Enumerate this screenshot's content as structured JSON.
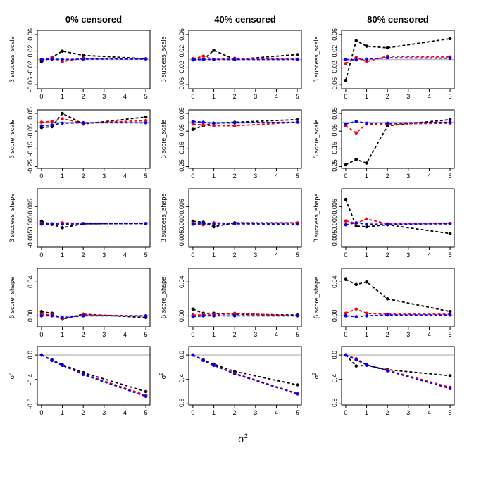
{
  "chart_data": {
    "type": "line",
    "column_titles": [
      "0% censored",
      "40% censored",
      "80% censored"
    ],
    "xlabel": "σ",
    "xlabel_sup": "2",
    "x_ticks": [
      "0",
      "1",
      "2",
      "3",
      "4",
      "5"
    ],
    "x": [
      0,
      0.5,
      1,
      2,
      5
    ],
    "series_colors": {
      "black": "#000000",
      "red": "#ff0000",
      "blue": "#0000ff"
    },
    "reference_color": "#bebebe",
    "rows": [
      {
        "ylabel": "β success_scale",
        "ylim": [
          -0.07,
          0.07
        ],
        "yticks": [
          -0.06,
          -0.02,
          0.02,
          0.06
        ],
        "ytick_labels": [
          "-0.06",
          "-0.02",
          "0.02",
          "0.06"
        ],
        "panels": [
          {
            "black": [
              -0.005,
              0.005,
              0.02,
              0.01,
              0.002
            ],
            "red": [
              0.0,
              0.004,
              -0.005,
              0.003,
              0.002
            ],
            "blue": [
              0.0,
              0.001,
              0.0,
              0.001,
              0.001
            ]
          },
          {
            "black": [
              0.001,
              0.0,
              0.022,
              0.0,
              0.012
            ],
            "red": [
              0.002,
              0.008,
              0.0,
              0.003,
              0.001
            ],
            "blue": [
              -0.001,
              0.0,
              0.0,
              0.0,
              0.0
            ]
          },
          {
            "black": [
              -0.05,
              0.045,
              0.032,
              0.028,
              0.05
            ],
            "red": [
              -0.01,
              0.005,
              -0.005,
              0.008,
              0.006
            ],
            "blue": [
              0.0,
              -0.001,
              0.001,
              0.004,
              0.003
            ]
          }
        ]
      },
      {
        "ylabel": "β score_scale",
        "ylim": [
          -0.26,
          0.07
        ],
        "yticks": [
          -0.25,
          -0.15,
          -0.05,
          0.05
        ],
        "ytick_labels": [
          "-0.25",
          "-0.15",
          "-0.05",
          "0.05"
        ],
        "panels": [
          {
            "black": [
              -0.03,
              -0.025,
              0.05,
              -0.01,
              0.03
            ],
            "red": [
              0.0,
              0.005,
              0.02,
              -0.005,
              0.01
            ],
            "blue": [
              -0.02,
              -0.015,
              -0.005,
              -0.003,
              -0.003
            ]
          },
          {
            "black": [
              -0.04,
              -0.02,
              -0.005,
              0.0,
              0.015
            ],
            "red": [
              -0.01,
              -0.015,
              -0.02,
              -0.02,
              0.0
            ],
            "blue": [
              0.005,
              0.0,
              -0.005,
              -0.003,
              0.0
            ]
          },
          {
            "black": [
              -0.24,
              -0.21,
              -0.23,
              -0.02,
              0.015
            ],
            "red": [
              -0.02,
              -0.06,
              -0.01,
              -0.01,
              -0.005
            ],
            "blue": [
              -0.01,
              0.005,
              -0.005,
              -0.005,
              0.0
            ]
          }
        ]
      },
      {
        "ylabel": "β success_shape",
        "ylim": [
          -0.0075,
          0.0105
        ],
        "yticks": [
          -0.005,
          0.0,
          0.005
        ],
        "ytick_labels": [
          "-0.005",
          "0.000",
          "0.005"
        ],
        "panels": [
          {
            "black": [
              0.0005,
              -0.0005,
              -0.0015,
              -0.0003,
              -0.0002
            ],
            "red": [
              -0.0002,
              -0.0004,
              0.0,
              -0.0002,
              -0.0002
            ],
            "blue": [
              -0.0004,
              -0.0003,
              -0.0004,
              -0.0003,
              -0.0002
            ]
          },
          {
            "black": [
              0.0005,
              0.0002,
              -0.0012,
              0.0,
              0.0
            ],
            "red": [
              -0.0002,
              -0.0006,
              0.0,
              -0.0002,
              0.0
            ],
            "blue": [
              -0.0004,
              -0.0002,
              -0.0003,
              -0.0003,
              -0.0004
            ]
          },
          {
            "black": [
              0.0072,
              -0.001,
              -0.0012,
              -0.0006,
              -0.0033
            ],
            "red": [
              0.0006,
              -0.0001,
              0.0012,
              -0.0003,
              -0.0002
            ],
            "blue": [
              -0.0006,
              0.0,
              -0.0004,
              -0.0004,
              -0.0003
            ]
          }
        ]
      },
      {
        "ylabel": "β score_shape",
        "ylim": [
          -0.013,
          0.056
        ],
        "yticks": [
          0.0,
          0.04
        ],
        "ytick_labels": [
          "0.00",
          "0.04"
        ],
        "panels": [
          {
            "black": [
              0.005,
              0.003,
              -0.004,
              0.002,
              -0.002
            ],
            "red": [
              0.002,
              0.001,
              -0.003,
              0.001,
              0.0
            ],
            "blue": [
              0.0,
              0.0,
              -0.002,
              0.0,
              0.0
            ]
          },
          {
            "black": [
              0.008,
              0.003,
              0.003,
              0.002,
              0.001
            ],
            "red": [
              0.001,
              0.001,
              0.001,
              0.003,
              0.0
            ],
            "blue": [
              -0.001,
              0.0,
              0.0,
              0.0,
              0.0
            ]
          },
          {
            "black": [
              0.043,
              0.037,
              0.04,
              0.02,
              0.005
            ],
            "red": [
              0.003,
              0.008,
              0.003,
              0.002,
              0.002
            ],
            "blue": [
              0.0,
              -0.001,
              0.0,
              0.001,
              0.001
            ]
          }
        ]
      },
      {
        "ylabel": "σ",
        "ylabel_sup": "2",
        "ylim": [
          -0.82,
          0.14
        ],
        "yticks": [
          -0.8,
          -0.4,
          0.0
        ],
        "ytick_labels": [
          "-0.8",
          "-0.4",
          "0.0"
        ],
        "panels": [
          {
            "black": [
              0.0,
              -0.08,
              -0.16,
              -0.29,
              -0.6
            ],
            "red": [
              0.0,
              -0.09,
              -0.17,
              -0.31,
              -0.66
            ],
            "blue": [
              0.0,
              -0.09,
              -0.17,
              -0.32,
              -0.68
            ]
          },
          {
            "black": [
              0.0,
              -0.08,
              -0.15,
              -0.27,
              -0.49
            ],
            "red": [
              0.0,
              -0.09,
              -0.17,
              -0.3,
              -0.63
            ],
            "blue": [
              0.0,
              -0.09,
              -0.17,
              -0.31,
              -0.64
            ]
          },
          {
            "black": [
              0.0,
              -0.18,
              -0.17,
              -0.24,
              -0.34
            ],
            "red": [
              0.0,
              -0.06,
              -0.16,
              -0.25,
              -0.53
            ],
            "blue": [
              0.0,
              -0.08,
              -0.16,
              -0.26,
              -0.55
            ]
          }
        ]
      }
    ]
  }
}
